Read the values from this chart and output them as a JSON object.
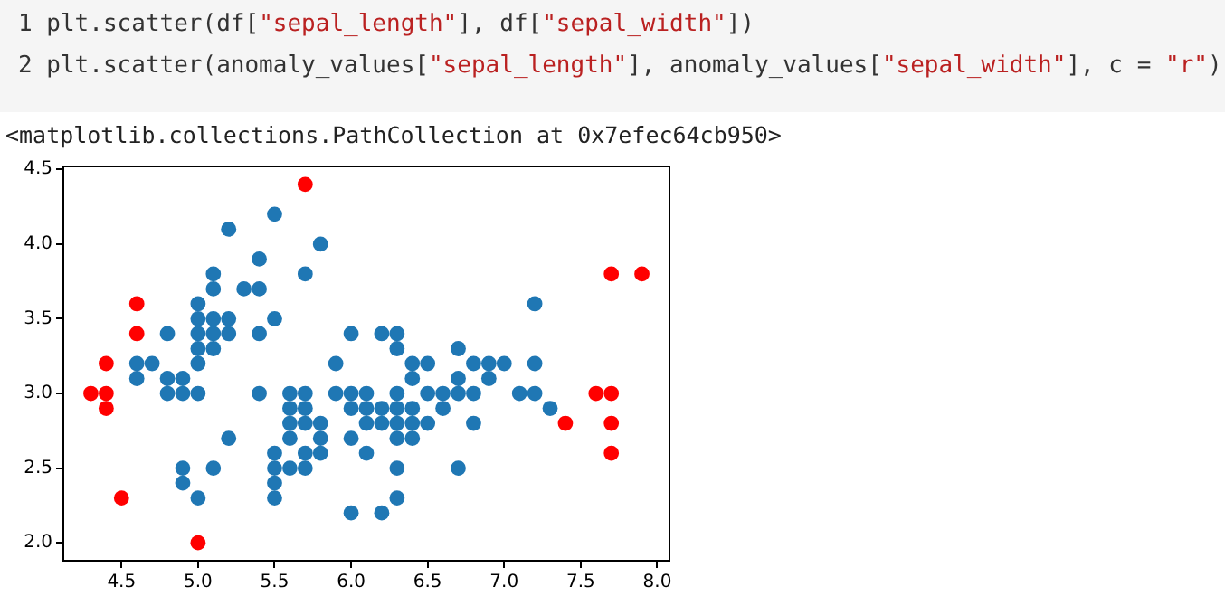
{
  "chart_data": {
    "type": "scatter",
    "annotations": [
      "1 plt.scatter(df[\"sepal_length\"], df[\"sepal_width\"])",
      "2 plt.scatter(anomaly_values[\"sepal_length\"], anomaly_values[\"sepal_width\"], c = \"r\")",
      "<matplotlib.collections.PathCollection at 0x7efec64cb950>"
    ],
    "marker": "circle",
    "grid": false,
    "legend": false,
    "xlim": [
      4.12,
      8.08
    ],
    "ylim": [
      1.88,
      4.52
    ],
    "xticks": [
      {
        "value": 4.5,
        "label": "4.5"
      },
      {
        "value": 5,
        "label": "5.0"
      },
      {
        "value": 5.5,
        "label": "5.5"
      },
      {
        "value": 6,
        "label": "6.0"
      },
      {
        "value": 6.5,
        "label": "6.5"
      },
      {
        "value": 7,
        "label": "7.0"
      },
      {
        "value": 7.5,
        "label": "7.5"
      },
      {
        "value": 8,
        "label": "8.0"
      }
    ],
    "yticks": [
      {
        "value": 2,
        "label": "2.0"
      },
      {
        "value": 2.5,
        "label": "2.5"
      },
      {
        "value": 3,
        "label": "3.0"
      },
      {
        "value": 3.5,
        "label": "3.5"
      },
      {
        "value": 4,
        "label": "4.0"
      },
      {
        "value": 4.5,
        "label": "4.5"
      }
    ],
    "series": [
      {
        "color": "#1f77b4",
        "x": [
          4.6,
          4.6,
          4.7,
          4.8,
          4.8,
          4.8,
          4.9,
          4.9,
          4.9,
          4.9,
          5.0,
          5.0,
          5.0,
          5.0,
          5.0,
          5.0,
          5.0,
          5.1,
          5.1,
          5.1,
          5.1,
          5.1,
          5.1,
          5.2,
          5.2,
          5.2,
          5.2,
          5.3,
          5.4,
          5.4,
          5.4,
          5.4,
          5.5,
          5.5,
          5.5,
          5.5,
          5.5,
          5.5,
          5.6,
          5.6,
          5.6,
          5.6,
          5.6,
          5.7,
          5.7,
          5.7,
          5.7,
          5.7,
          5.7,
          5.8,
          5.8,
          5.8,
          5.8,
          5.9,
          5.9,
          6.0,
          6.0,
          6.0,
          6.0,
          6.0,
          6.1,
          6.1,
          6.1,
          6.1,
          6.2,
          6.2,
          6.2,
          6.2,
          6.3,
          6.3,
          6.3,
          6.3,
          6.3,
          6.3,
          6.3,
          6.3,
          6.4,
          6.4,
          6.4,
          6.4,
          6.4,
          6.5,
          6.5,
          6.5,
          6.6,
          6.6,
          6.7,
          6.7,
          6.7,
          6.7,
          6.8,
          6.8,
          6.8,
          6.9,
          6.9,
          7.0,
          7.1,
          7.2,
          7.2,
          7.2,
          7.3
        ],
        "values": [
          3.2,
          3.1,
          3.2,
          3.4,
          3.1,
          3.0,
          3.1,
          3.0,
          2.5,
          2.4,
          3.6,
          3.5,
          3.4,
          3.3,
          3.2,
          3.0,
          2.3,
          3.8,
          3.7,
          3.5,
          3.4,
          3.3,
          2.5,
          4.1,
          3.5,
          3.4,
          2.7,
          3.7,
          3.9,
          3.7,
          3.4,
          3.0,
          4.2,
          3.5,
          2.6,
          2.5,
          2.4,
          2.3,
          3.0,
          2.9,
          2.8,
          2.7,
          2.5,
          3.8,
          3.0,
          2.9,
          2.8,
          2.6,
          2.5,
          4.0,
          2.8,
          2.7,
          2.6,
          3.2,
          3.0,
          3.4,
          3.0,
          2.9,
          2.7,
          2.2,
          3.0,
          2.9,
          2.8,
          2.6,
          3.4,
          2.9,
          2.8,
          2.2,
          3.4,
          3.3,
          3.0,
          2.9,
          2.8,
          2.7,
          2.5,
          2.3,
          3.2,
          3.1,
          2.9,
          2.8,
          2.7,
          3.2,
          3.0,
          2.8,
          3.0,
          2.9,
          3.3,
          3.1,
          3.0,
          2.5,
          3.2,
          3.0,
          2.8,
          3.2,
          3.1,
          3.2,
          3.0,
          3.6,
          3.2,
          3.0,
          2.9
        ]
      },
      {
        "color": "#ff0000",
        "x": [
          4.3,
          4.4,
          4.4,
          4.4,
          4.5,
          4.6,
          4.6,
          5.0,
          5.7,
          7.4,
          7.6,
          7.7,
          7.7,
          7.7,
          7.7,
          7.9
        ],
        "values": [
          3.0,
          3.2,
          3.0,
          2.9,
          2.3,
          3.6,
          3.4,
          2.0,
          4.4,
          2.8,
          3.0,
          3.8,
          3.0,
          2.8,
          2.6,
          3.8
        ]
      }
    ]
  }
}
